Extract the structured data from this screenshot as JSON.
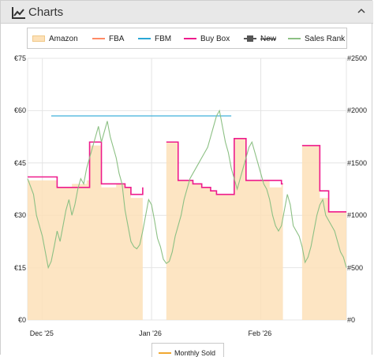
{
  "header": {
    "title": "Charts",
    "icon": "line-chart-icon",
    "collapse_icon": "chevron-up-icon"
  },
  "legend": [
    {
      "label": "Amazon",
      "color": "#fde1b8",
      "kind": "area"
    },
    {
      "label": "FBA",
      "color": "#ff8a65",
      "kind": "line"
    },
    {
      "label": "FBM",
      "color": "#2aa7d6",
      "kind": "line"
    },
    {
      "label": "Buy Box",
      "color": "#ee1b8c",
      "kind": "line"
    },
    {
      "label": "New",
      "color": "#555555",
      "kind": "marker",
      "disabled": true
    },
    {
      "label": "Sales Rank",
      "color": "#8cc084",
      "kind": "line"
    }
  ],
  "bottom_legend": {
    "label": "Monthly Sold",
    "color": "#f0a830"
  },
  "chart_data": {
    "type": "line",
    "xlabel": "",
    "ylabel_left": "",
    "ylabel_right": "",
    "x_ticks": [
      "Dec '25",
      "Jan '26",
      "Feb '26"
    ],
    "y_left_ticks": [
      "€0",
      "€15",
      "€30",
      "€45",
      "€60",
      "€75"
    ],
    "y_right_ticks": [
      "#0",
      "#500",
      "#1000",
      "#1500",
      "#2000",
      "#2500"
    ],
    "ylim_left": [
      0,
      75
    ],
    "ylim_right": [
      0,
      2500
    ],
    "xlim_days": [
      0,
      108
    ],
    "grid": true,
    "legend_position": "top",
    "series": [
      {
        "name": "Amazon",
        "axis": "left",
        "kind": "area",
        "color": "#fde1b8",
        "segments": [
          [
            [
              0,
              40
            ],
            [
              10,
              40
            ],
            [
              10,
              38
            ],
            [
              15,
              38
            ],
            [
              15,
              39
            ],
            [
              20,
              39
            ],
            [
              20,
              40
            ],
            [
              21,
              40
            ],
            [
              21,
              50
            ],
            [
              25,
              50
            ],
            [
              25,
              38
            ],
            [
              30,
              38
            ],
            [
              30,
              39
            ],
            [
              33,
              39
            ],
            [
              33,
              38
            ],
            [
              35,
              38
            ],
            [
              35,
              35
            ],
            [
              39,
              35
            ],
            [
              39,
              26
            ]
          ],
          [
            [
              47,
              27
            ],
            [
              47,
              51
            ],
            [
              51,
              51
            ],
            [
              51,
              40
            ],
            [
              56,
              40
            ],
            [
              56,
              39
            ],
            [
              59,
              39
            ],
            [
              59,
              38
            ],
            [
              62,
              38
            ],
            [
              62,
              37
            ],
            [
              64,
              37
            ],
            [
              64,
              36
            ],
            [
              70,
              36
            ],
            [
              70,
              52
            ],
            [
              74,
              52
            ],
            [
              74,
              40
            ],
            [
              82,
              40
            ],
            [
              82,
              38
            ],
            [
              86,
              38
            ],
            [
              86,
              39
            ],
            [
              86.5,
              39
            ]
          ],
          [
            [
              93,
              50
            ],
            [
              99,
              50
            ],
            [
              99,
              35
            ],
            [
              102,
              35
            ],
            [
              102,
              31
            ],
            [
              108,
              31
            ]
          ]
        ]
      },
      {
        "name": "Buy Box",
        "axis": "left",
        "kind": "line",
        "color": "#ee1b8c",
        "segments": [
          [
            [
              0,
              41
            ],
            [
              10,
              41
            ],
            [
              10,
              38
            ],
            [
              21,
              38
            ],
            [
              21,
              51
            ],
            [
              25,
              51
            ],
            [
              25,
              39
            ],
            [
              33,
              39
            ],
            [
              33,
              38
            ],
            [
              35,
              38
            ],
            [
              35,
              36
            ],
            [
              39,
              36
            ],
            [
              39,
              38
            ]
          ],
          [
            [
              47,
              51
            ],
            [
              51,
              51
            ],
            [
              51,
              40
            ],
            [
              56,
              40
            ],
            [
              56,
              39
            ],
            [
              59,
              39
            ],
            [
              59,
              38
            ],
            [
              62,
              38
            ],
            [
              62,
              37
            ],
            [
              64,
              37
            ],
            [
              64,
              36
            ],
            [
              70,
              36
            ],
            [
              70,
              52
            ],
            [
              74,
              52
            ],
            [
              74,
              40
            ],
            [
              86,
              40
            ],
            [
              86,
              39
            ],
            [
              86.5,
              39
            ]
          ],
          [
            [
              93,
              50
            ],
            [
              99,
              50
            ],
            [
              99,
              37
            ],
            [
              102,
              37
            ],
            [
              102,
              31
            ],
            [
              108,
              31
            ]
          ]
        ]
      },
      {
        "name": "FBM",
        "axis": "left",
        "kind": "line",
        "color": "#2aa7d6",
        "segments": [
          [
            [
              8,
              58.5
            ],
            [
              69,
              58.5
            ]
          ]
        ]
      },
      {
        "name": "Sales Rank",
        "axis": "right",
        "kind": "line",
        "color": "#8cc084",
        "points": [
          [
            0,
            1350
          ],
          [
            2,
            1200
          ],
          [
            3,
            1000
          ],
          [
            4,
            900
          ],
          [
            5,
            800
          ],
          [
            6,
            650
          ],
          [
            7,
            500
          ],
          [
            8,
            560
          ],
          [
            9,
            700
          ],
          [
            10,
            850
          ],
          [
            11,
            750
          ],
          [
            12,
            900
          ],
          [
            13,
            1050
          ],
          [
            14,
            1150
          ],
          [
            15,
            1000
          ],
          [
            16,
            1100
          ],
          [
            17,
            1250
          ],
          [
            18,
            1350
          ],
          [
            19,
            1300
          ],
          [
            20,
            1450
          ],
          [
            21,
            1550
          ],
          [
            22,
            1650
          ],
          [
            23,
            1750
          ],
          [
            24,
            1850
          ],
          [
            25,
            1700
          ],
          [
            26,
            1800
          ],
          [
            27,
            1900
          ],
          [
            28,
            1750
          ],
          [
            29,
            1650
          ],
          [
            30,
            1550
          ],
          [
            31,
            1400
          ],
          [
            32,
            1300
          ],
          [
            33,
            1050
          ],
          [
            34,
            900
          ],
          [
            35,
            750
          ],
          [
            36,
            700
          ],
          [
            37,
            680
          ],
          [
            38,
            720
          ],
          [
            39,
            850
          ],
          [
            40,
            1000
          ],
          [
            41,
            1150
          ],
          [
            42,
            1100
          ],
          [
            43,
            950
          ],
          [
            44,
            780
          ],
          [
            45,
            700
          ],
          [
            46,
            580
          ],
          [
            47,
            540
          ],
          [
            48,
            560
          ],
          [
            49,
            650
          ],
          [
            50,
            800
          ],
          [
            51,
            900
          ],
          [
            52,
            1000
          ],
          [
            53,
            1150
          ],
          [
            54,
            1250
          ],
          [
            55,
            1350
          ],
          [
            56,
            1400
          ],
          [
            57,
            1450
          ],
          [
            58,
            1500
          ],
          [
            59,
            1550
          ],
          [
            60,
            1600
          ],
          [
            61,
            1650
          ],
          [
            62,
            1750
          ],
          [
            63,
            1850
          ],
          [
            64,
            1950
          ],
          [
            65,
            2000
          ],
          [
            66,
            1850
          ],
          [
            67,
            1700
          ],
          [
            68,
            1600
          ],
          [
            69,
            1450
          ],
          [
            70,
            1350
          ],
          [
            71,
            1250
          ],
          [
            72,
            1350
          ],
          [
            73,
            1450
          ],
          [
            74,
            1550
          ],
          [
            75,
            1650
          ],
          [
            76,
            1700
          ],
          [
            77,
            1600
          ],
          [
            78,
            1500
          ],
          [
            79,
            1400
          ],
          [
            80,
            1300
          ],
          [
            81,
            1250
          ],
          [
            82,
            1150
          ],
          [
            83,
            1000
          ],
          [
            84,
            900
          ],
          [
            85,
            850
          ],
          [
            86,
            900
          ],
          [
            87,
            1050
          ],
          [
            88,
            1200
          ],
          [
            89,
            1100
          ],
          [
            90,
            900
          ],
          [
            91,
            850
          ],
          [
            92,
            800
          ],
          [
            93,
            700
          ],
          [
            94,
            550
          ],
          [
            95,
            600
          ],
          [
            96,
            700
          ],
          [
            97,
            850
          ],
          [
            98,
            1000
          ],
          [
            99,
            1100
          ],
          [
            100,
            1150
          ],
          [
            101,
            1000
          ],
          [
            102,
            950
          ],
          [
            103,
            900
          ],
          [
            104,
            850
          ],
          [
            105,
            750
          ],
          [
            106,
            650
          ],
          [
            107,
            600
          ],
          [
            108,
            500
          ]
        ]
      }
    ]
  }
}
